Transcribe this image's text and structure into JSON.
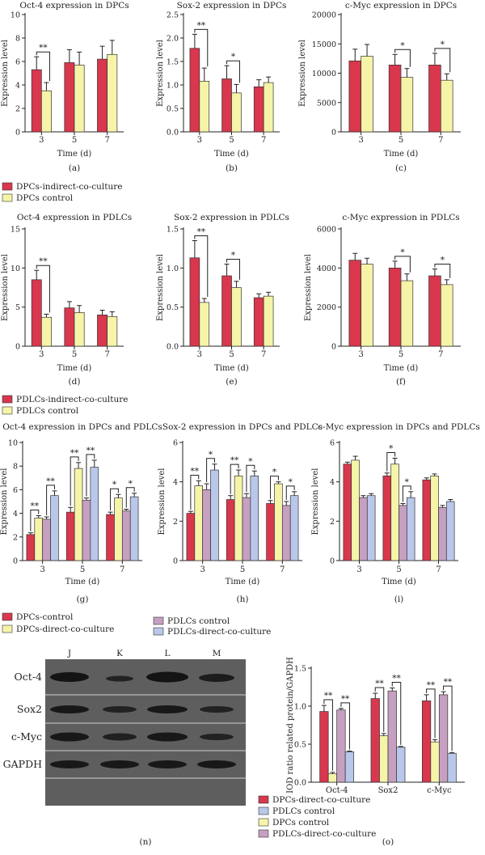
{
  "colors": {
    "dpc_indirect": "#d8374d",
    "dpc_control": "#f5f4a8",
    "pdlc_indirect": "#d8374d",
    "pdlc_control": "#f5f4a8",
    "g_dpc_control": "#d8374d",
    "g_dpc_direct": "#f5f4a8",
    "g_pdlc_control": "#c6a0c0",
    "g_pdlc_direct": "#b9c7ea",
    "o_dpc_direct": "#d8374d",
    "o_pdlc_control": "#b9c7ea",
    "o_dpc_control": "#f5f4a8",
    "o_pdlc_direct": "#c6a0c0"
  },
  "legends": {
    "row1": [
      "DPCs-indirect-co-culture",
      "DPCs control"
    ],
    "row2": [
      "PDLCs-indirect-co-culture",
      "PDLCs control"
    ],
    "row3": [
      "DPCs-control",
      "DPCs-direct-co-culture",
      "PDLCs control",
      "PDLCs-direct-co-culture"
    ],
    "row4": [
      "DPCs-direct-co-culture",
      "PDLCs control",
      "DPCs control",
      "PDLCs-direct-co-culture"
    ]
  },
  "blot": {
    "lanes": [
      "J",
      "K",
      "L",
      "M"
    ],
    "rows": [
      "Oct-4",
      "Sox2",
      "c-Myc",
      "GAPDH"
    ],
    "panel_label": "(n)"
  },
  "chart_data": [
    {
      "id": "a",
      "panel_label": "(a)",
      "type": "bar",
      "title": "Oct-4 expression in DPCs",
      "xlabel": "Time (d)",
      "ylabel": "Expression level",
      "categories": [
        "3",
        "5",
        "7"
      ],
      "ylim": [
        0,
        10
      ],
      "yticks": [
        "0",
        "2",
        "4",
        "6",
        "8",
        "10"
      ],
      "ytick_values": [
        0,
        2,
        4,
        6,
        8,
        10
      ],
      "series": [
        {
          "color_key": "dpc_indirect",
          "values": [
            5.3,
            5.9,
            6.2
          ],
          "errors": [
            1.1,
            1.1,
            1.1
          ]
        },
        {
          "color_key": "dpc_control",
          "values": [
            3.5,
            5.7,
            6.6
          ],
          "errors": [
            0.7,
            1.1,
            1.2
          ]
        }
      ],
      "significance": [
        {
          "category": 0,
          "label": "**"
        }
      ]
    },
    {
      "id": "b",
      "panel_label": "(b)",
      "type": "bar",
      "title": "Sox-2 expression in DPCs",
      "xlabel": "Time (d)",
      "ylabel": "Expression level",
      "categories": [
        "3",
        "5",
        "7"
      ],
      "ylim": [
        0,
        2.5
      ],
      "yticks": [
        "0.0",
        "0.5",
        "1.0",
        "1.5",
        "2.0",
        "2.5"
      ],
      "ytick_values": [
        0,
        0.5,
        1.0,
        1.5,
        2.0,
        2.5
      ],
      "series": [
        {
          "color_key": "dpc_indirect",
          "values": [
            1.78,
            1.13,
            0.96
          ],
          "errors": [
            0.3,
            0.28,
            0.15
          ]
        },
        {
          "color_key": "dpc_control",
          "values": [
            1.08,
            0.83,
            1.05
          ],
          "errors": [
            0.28,
            0.18,
            0.12
          ]
        }
      ],
      "significance": [
        {
          "category": 0,
          "label": "**"
        },
        {
          "category": 1,
          "label": "*"
        }
      ]
    },
    {
      "id": "c",
      "panel_label": "(c)",
      "type": "bar",
      "title": "c-Myc expression in DPCs",
      "xlabel": "Time (d)",
      "ylabel": "Expression level",
      "categories": [
        "3",
        "5",
        "7"
      ],
      "ylim": [
        0,
        20000
      ],
      "yticks": [
        "0",
        "5000",
        "10000",
        "15000",
        "20000"
      ],
      "ytick_values": [
        0,
        5000,
        10000,
        15000,
        20000
      ],
      "series": [
        {
          "color_key": "dpc_indirect",
          "values": [
            12100,
            11400,
            11400
          ],
          "errors": [
            2000,
            1800,
            2000
          ]
        },
        {
          "color_key": "dpc_control",
          "values": [
            12900,
            9300,
            8800
          ],
          "errors": [
            2000,
            1500,
            1100
          ]
        }
      ],
      "significance": [
        {
          "category": 1,
          "label": "*"
        },
        {
          "category": 2,
          "label": "*"
        }
      ]
    },
    {
      "id": "d",
      "panel_label": "(d)",
      "type": "bar",
      "title": "Oct-4 expression in PDLCs",
      "xlabel": "Time (d)",
      "ylabel": "Expression level",
      "categories": [
        "3",
        "5",
        "7"
      ],
      "ylim": [
        0,
        15
      ],
      "yticks": [
        "0",
        "5",
        "10",
        "15"
      ],
      "ytick_values": [
        0,
        5,
        10,
        15
      ],
      "series": [
        {
          "color_key": "pdlc_indirect",
          "values": [
            8.5,
            4.9,
            4.0
          ],
          "errors": [
            1.2,
            0.8,
            0.6
          ]
        },
        {
          "color_key": "pdlc_control",
          "values": [
            3.7,
            4.3,
            3.8
          ],
          "errors": [
            0.4,
            0.9,
            0.6
          ]
        }
      ],
      "significance": [
        {
          "category": 0,
          "label": "**"
        }
      ]
    },
    {
      "id": "e",
      "panel_label": "(e)",
      "type": "bar",
      "title": "Sox-2 expression in PDLCs",
      "xlabel": "Time (d)",
      "ylabel": "Expression level",
      "categories": [
        "3",
        "5",
        "7"
      ],
      "ylim": [
        0,
        1.5
      ],
      "yticks": [
        "0.0",
        "0.5",
        "1.0",
        "1.5"
      ],
      "ytick_values": [
        0,
        0.5,
        1.0,
        1.5
      ],
      "series": [
        {
          "color_key": "pdlc_indirect",
          "values": [
            1.13,
            0.9,
            0.62
          ],
          "errors": [
            0.22,
            0.15,
            0.05
          ]
        },
        {
          "color_key": "pdlc_control",
          "values": [
            0.56,
            0.75,
            0.64
          ],
          "errors": [
            0.05,
            0.08,
            0.05
          ]
        }
      ],
      "significance": [
        {
          "category": 0,
          "label": "**"
        },
        {
          "category": 1,
          "label": "*"
        }
      ]
    },
    {
      "id": "f",
      "panel_label": "(f)",
      "type": "bar",
      "title": "c-Myc expression in PDLCs",
      "xlabel": "Time (d)",
      "ylabel": "Expression level",
      "categories": [
        "3",
        "5",
        "7"
      ],
      "ylim": [
        0,
        6000
      ],
      "yticks": [
        "0",
        "2000",
        "4000",
        "6000"
      ],
      "ytick_values": [
        0,
        2000,
        4000,
        6000
      ],
      "series": [
        {
          "color_key": "pdlc_indirect",
          "values": [
            4400,
            4000,
            3600
          ],
          "errors": [
            350,
            350,
            350
          ]
        },
        {
          "color_key": "pdlc_control",
          "values": [
            4200,
            3350,
            3150
          ],
          "errors": [
            300,
            350,
            250
          ]
        }
      ],
      "significance": [
        {
          "category": 1,
          "label": "*"
        },
        {
          "category": 2,
          "label": "*"
        }
      ]
    },
    {
      "id": "g",
      "panel_label": "(g)",
      "type": "bar",
      "title": "Oct-4 expression in DPCs and PDLCs",
      "xlabel": "Time (d)",
      "ylabel": "Expression level",
      "categories": [
        "3",
        "5",
        "7"
      ],
      "ylim": [
        0,
        10
      ],
      "yticks": [
        "0",
        "2",
        "4",
        "6",
        "8",
        "10"
      ],
      "ytick_values": [
        0,
        2,
        4,
        6,
        8,
        10
      ],
      "series": [
        {
          "color_key": "g_dpc_control",
          "values": [
            2.2,
            4.1,
            3.9
          ],
          "errors": [
            0.15,
            0.4,
            0.2
          ]
        },
        {
          "color_key": "g_dpc_direct",
          "values": [
            3.6,
            7.8,
            5.3
          ],
          "errors": [
            0.2,
            0.5,
            0.3
          ]
        },
        {
          "color_key": "g_pdlc_control",
          "values": [
            3.5,
            5.1,
            4.2
          ],
          "errors": [
            0.2,
            0.2,
            0.15
          ]
        },
        {
          "color_key": "g_pdlc_direct",
          "values": [
            5.5,
            7.9,
            5.4
          ],
          "errors": [
            0.4,
            0.6,
            0.3
          ]
        }
      ],
      "brackets": [
        {
          "category": 0,
          "from": 0,
          "to": 1,
          "label": "**"
        },
        {
          "category": 0,
          "from": 2,
          "to": 3,
          "label": "**"
        },
        {
          "category": 1,
          "from": 0,
          "to": 1,
          "label": "**"
        },
        {
          "category": 1,
          "from": 2,
          "to": 3,
          "label": "**"
        },
        {
          "category": 2,
          "from": 0,
          "to": 1,
          "label": "*"
        },
        {
          "category": 2,
          "from": 2,
          "to": 3,
          "label": "*"
        }
      ]
    },
    {
      "id": "h",
      "panel_label": "(h)",
      "type": "bar",
      "title": "Sox-2 expression in DPCs and PDLCs",
      "xlabel": "Time (d)",
      "ylabel": "Expression level",
      "categories": [
        "3",
        "5",
        "7"
      ],
      "ylim": [
        0,
        6
      ],
      "yticks": [
        "0",
        "2",
        "4",
        "6"
      ],
      "ytick_values": [
        0,
        2,
        4,
        6
      ],
      "series": [
        {
          "color_key": "g_dpc_control",
          "values": [
            2.4,
            3.1,
            2.9
          ],
          "errors": [
            0.1,
            0.2,
            0.15
          ]
        },
        {
          "color_key": "g_dpc_direct",
          "values": [
            3.8,
            4.3,
            3.9
          ],
          "errors": [
            0.25,
            0.3,
            0.1
          ]
        },
        {
          "color_key": "g_pdlc_control",
          "values": [
            3.6,
            3.2,
            2.8
          ],
          "errors": [
            0.3,
            0.2,
            0.2
          ]
        },
        {
          "color_key": "g_pdlc_direct",
          "values": [
            4.6,
            4.3,
            3.3
          ],
          "errors": [
            0.3,
            0.25,
            0.2
          ]
        }
      ],
      "brackets": [
        {
          "category": 0,
          "from": 0,
          "to": 1,
          "label": "**"
        },
        {
          "category": 0,
          "from": 2,
          "to": 3,
          "label": "*"
        },
        {
          "category": 1,
          "from": 0,
          "to": 1,
          "label": "**"
        },
        {
          "category": 1,
          "from": 2,
          "to": 3,
          "label": "*"
        },
        {
          "category": 2,
          "from": 0,
          "to": 1,
          "label": "*"
        },
        {
          "category": 2,
          "from": 2,
          "to": 3,
          "label": "*"
        }
      ]
    },
    {
      "id": "i",
      "panel_label": "(i)",
      "type": "bar",
      "title": "c-Myc expression in DPCs and PDLCs",
      "xlabel": "Time (d)",
      "ylabel": "Expression level",
      "categories": [
        "3",
        "5",
        "7"
      ],
      "ylim": [
        0,
        6
      ],
      "yticks": [
        "0",
        "2",
        "4",
        "6"
      ],
      "ytick_values": [
        0,
        2,
        4,
        6
      ],
      "series": [
        {
          "color_key": "g_dpc_control",
          "values": [
            4.9,
            4.3,
            4.1
          ],
          "errors": [
            0.1,
            0.15,
            0.1
          ]
        },
        {
          "color_key": "g_dpc_direct",
          "values": [
            5.1,
            4.9,
            4.3
          ],
          "errors": [
            0.2,
            0.3,
            0.1
          ]
        },
        {
          "color_key": "g_pdlc_control",
          "values": [
            3.2,
            2.8,
            2.7
          ],
          "errors": [
            0.1,
            0.1,
            0.1
          ]
        },
        {
          "color_key": "g_pdlc_direct",
          "values": [
            3.3,
            3.2,
            3.0
          ],
          "errors": [
            0.1,
            0.3,
            0.1
          ]
        }
      ],
      "brackets": [
        {
          "category": 1,
          "from": 0,
          "to": 1,
          "label": "*"
        },
        {
          "category": 1,
          "from": 2,
          "to": 3,
          "label": "*"
        }
      ]
    },
    {
      "id": "o",
      "panel_label": "(o)",
      "type": "bar",
      "title": "",
      "xlabel": "",
      "ylabel": "IOD ratio related protein/GAPDH",
      "categories": [
        "Oct-4",
        "Sox2",
        "c-Myc"
      ],
      "ylim": [
        0,
        1.5
      ],
      "yticks": [
        "0.0",
        "0.5",
        "1.0",
        "1.5"
      ],
      "ytick_values": [
        0,
        0.5,
        1.0,
        1.5
      ],
      "series": [
        {
          "color_key": "o_dpc_direct",
          "values": [
            0.93,
            1.1,
            1.07
          ],
          "errors": [
            0.08,
            0.07,
            0.08
          ]
        },
        {
          "color_key": "o_dpc_control",
          "values": [
            0.11,
            0.61,
            0.53
          ],
          "errors": [
            0.02,
            0.03,
            0.03
          ]
        },
        {
          "color_key": "o_pdlc_direct",
          "values": [
            0.95,
            1.2,
            1.15
          ],
          "errors": [
            0.02,
            0.04,
            0.04
          ]
        },
        {
          "color_key": "o_pdlc_control",
          "values": [
            0.4,
            0.46,
            0.38
          ],
          "errors": [
            0.01,
            0.01,
            0.01
          ]
        }
      ],
      "brackets": [
        {
          "category": 0,
          "from": 0,
          "to": 1,
          "label": "**"
        },
        {
          "category": 0,
          "from": 2,
          "to": 3,
          "label": "**"
        },
        {
          "category": 1,
          "from": 0,
          "to": 1,
          "label": "**"
        },
        {
          "category": 1,
          "from": 2,
          "to": 3,
          "label": "**"
        },
        {
          "category": 2,
          "from": 0,
          "to": 1,
          "label": "**"
        },
        {
          "category": 2,
          "from": 2,
          "to": 3,
          "label": "**"
        }
      ]
    }
  ]
}
